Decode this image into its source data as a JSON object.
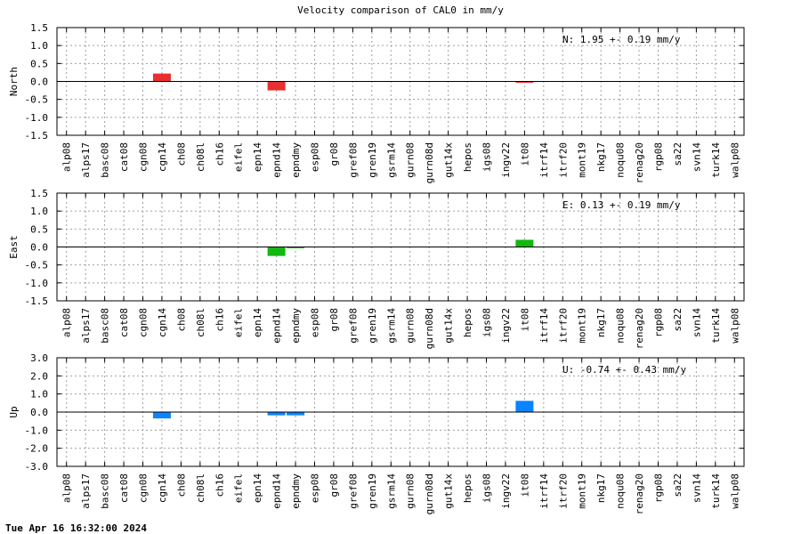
{
  "title": "Velocity comparison of CAL0 in mm/y",
  "footer": "Tue Apr 16 16:32:00 2024",
  "chart_data": [
    {
      "type": "bar",
      "ylabel": "North",
      "ylim": [
        -1.5,
        1.5
      ],
      "yticks": [
        "1.5",
        "1.0",
        "0.5",
        "0.0",
        "-0.5",
        "-1.0",
        "-1.5"
      ],
      "color": "#e83030",
      "annotation": "N:   1.95 +-  0.19 mm/y",
      "grid": true,
      "categories": [
        "alp08",
        "alps17",
        "basc08",
        "cat08",
        "cgn08",
        "cgn14",
        "ch08",
        "ch08l",
        "ch16",
        "eifel",
        "epn14",
        "epnd14",
        "epndmy",
        "esp08",
        "gr08",
        "gref08",
        "gren19",
        "gsrm14",
        "gurn08",
        "gurn08d",
        "gut14x",
        "hepos",
        "igs08",
        "ingv22",
        "it08",
        "itrf14",
        "itrf20",
        "mont19",
        "nkg17",
        "noqu08",
        "renag20",
        "rgp08",
        "sa22",
        "svn14",
        "turk14",
        "walp08"
      ],
      "values": [
        0,
        0,
        0,
        0,
        0,
        0.22,
        0,
        0,
        0,
        0,
        0,
        -0.25,
        0,
        0,
        0,
        0,
        0,
        0,
        0,
        0,
        0,
        0,
        0,
        0,
        -0.03,
        0,
        0,
        0,
        0,
        0,
        0,
        0,
        0,
        0,
        0,
        0
      ]
    },
    {
      "type": "bar",
      "ylabel": "East",
      "ylim": [
        -1.5,
        1.5
      ],
      "yticks": [
        "1.5",
        "1.0",
        "0.5",
        "0.0",
        "-0.5",
        "-1.0",
        "-1.5"
      ],
      "color": "#10b810",
      "annotation": "E:   0.13 +-  0.19 mm/y",
      "grid": true,
      "categories": [
        "alp08",
        "alps17",
        "basc08",
        "cat08",
        "cgn08",
        "cgn14",
        "ch08",
        "ch08l",
        "ch16",
        "eifel",
        "epn14",
        "epnd14",
        "epndmy",
        "esp08",
        "gr08",
        "gref08",
        "gren19",
        "gsrm14",
        "gurn08",
        "gurn08d",
        "gut14x",
        "hepos",
        "igs08",
        "ingv22",
        "it08",
        "itrf14",
        "itrf20",
        "mont19",
        "nkg17",
        "noqu08",
        "renag20",
        "rgp08",
        "sa22",
        "svn14",
        "turk14",
        "walp08"
      ],
      "values": [
        0,
        0,
        0,
        0,
        0,
        0,
        0,
        0,
        0,
        0,
        0,
        -0.25,
        -0.03,
        0,
        0,
        0,
        0,
        0,
        0,
        0,
        0,
        0,
        0,
        0,
        0.2,
        0,
        0,
        0,
        0,
        0,
        0,
        0,
        0,
        0,
        0,
        0
      ]
    },
    {
      "type": "bar",
      "ylabel": "Up",
      "ylim": [
        -3.0,
        3.0
      ],
      "yticks": [
        "3.0",
        "2.0",
        "1.0",
        "0.0",
        "-1.0",
        "-2.0",
        "-3.0"
      ],
      "color": "#0a84ff",
      "annotation": "U:  -0.74 +-  0.43 mm/y",
      "grid": true,
      "categories": [
        "alp08",
        "alps17",
        "basc08",
        "cat08",
        "cgn08",
        "cgn14",
        "ch08",
        "ch08l",
        "ch16",
        "eifel",
        "epn14",
        "epnd14",
        "epndmy",
        "esp08",
        "gr08",
        "gref08",
        "gren19",
        "gsrm14",
        "gurn08",
        "gurn08d",
        "gut14x",
        "hepos",
        "igs08",
        "ingv22",
        "it08",
        "itrf14",
        "itrf20",
        "mont19",
        "nkg17",
        "noqu08",
        "renag20",
        "rgp08",
        "sa22",
        "svn14",
        "turk14",
        "walp08"
      ],
      "values": [
        0,
        0,
        0,
        0,
        0,
        -0.35,
        0,
        0,
        0,
        0,
        0,
        -0.18,
        -0.18,
        0,
        0,
        0,
        0,
        0,
        0,
        0,
        0,
        0,
        0,
        0,
        0.62,
        0,
        0,
        0,
        0,
        0,
        0,
        0,
        0,
        0,
        0,
        0
      ]
    }
  ]
}
